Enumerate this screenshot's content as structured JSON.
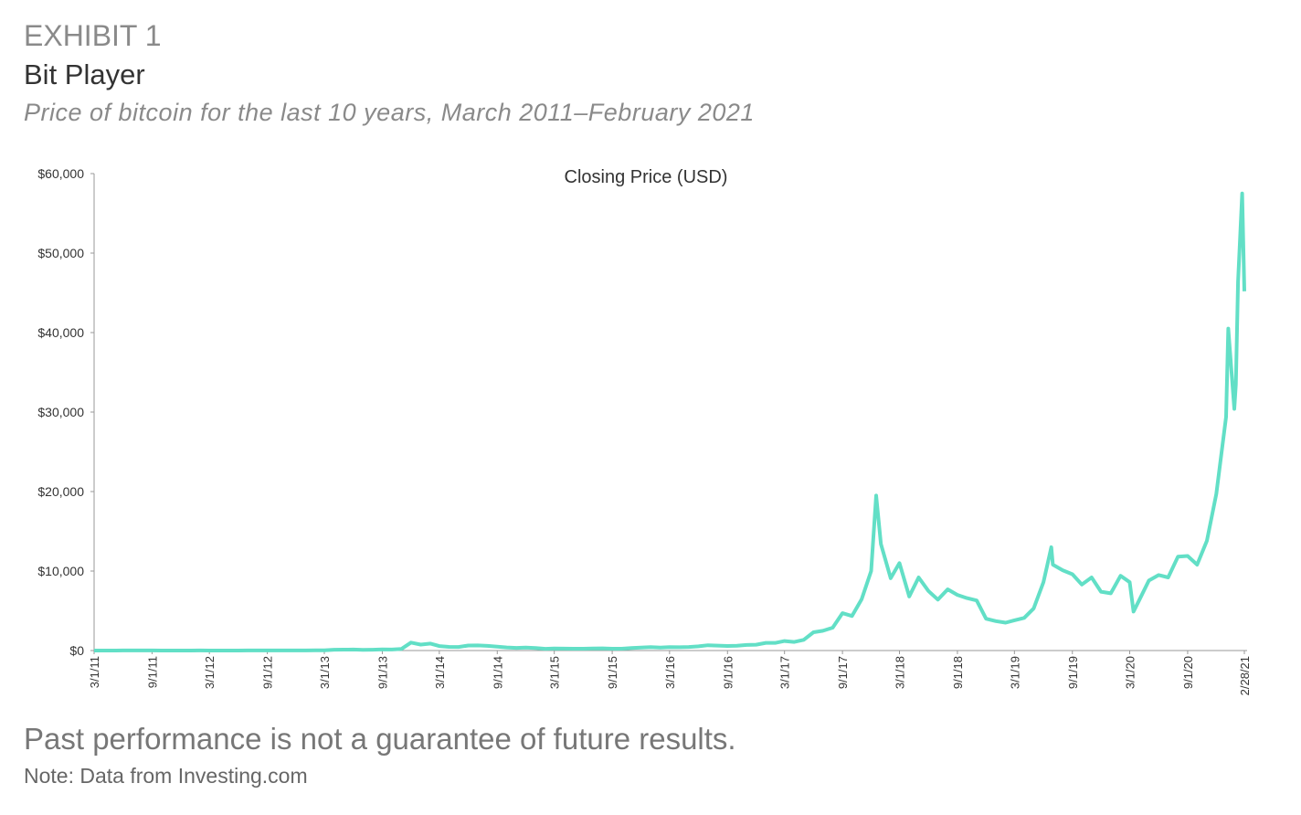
{
  "header": {
    "exhibit": "EXHIBIT 1",
    "title": "Bit Player",
    "subtitle": "Price of bitcoin for the last 10 years, March 2011–February 2021"
  },
  "chart_data": {
    "type": "line",
    "x": [
      "3/1/11",
      "4/1/11",
      "5/1/11",
      "6/1/11",
      "7/1/11",
      "8/1/11",
      "9/1/11",
      "10/1/11",
      "11/1/11",
      "12/1/11",
      "1/1/12",
      "2/1/12",
      "3/1/12",
      "4/1/12",
      "5/1/12",
      "6/1/12",
      "7/1/12",
      "8/1/12",
      "9/1/12",
      "10/1/12",
      "11/1/12",
      "12/1/12",
      "1/1/13",
      "2/1/13",
      "3/1/13",
      "4/1/13",
      "5/1/13",
      "6/1/13",
      "7/1/13",
      "8/1/13",
      "9/1/13",
      "10/1/13",
      "11/1/13",
      "12/1/13",
      "1/1/14",
      "2/1/14",
      "3/1/14",
      "4/1/14",
      "5/1/14",
      "6/1/14",
      "7/1/14",
      "8/1/14",
      "9/1/14",
      "10/1/14",
      "11/1/14",
      "12/1/14",
      "1/1/15",
      "2/1/15",
      "3/1/15",
      "4/1/15",
      "5/1/15",
      "6/1/15",
      "7/1/15",
      "8/1/15",
      "9/1/15",
      "10/1/15",
      "11/1/15",
      "12/1/15",
      "1/1/16",
      "2/1/16",
      "3/1/16",
      "4/1/16",
      "5/1/16",
      "6/1/16",
      "7/1/16",
      "8/1/16",
      "9/1/16",
      "10/1/16",
      "11/1/16",
      "12/1/16",
      "1/1/17",
      "2/1/17",
      "3/1/17",
      "4/1/17",
      "5/1/17",
      "6/1/17",
      "7/1/17",
      "8/1/17",
      "9/1/17",
      "10/1/17",
      "11/1/17",
      "12/1/17",
      "12/17/17",
      "1/1/18",
      "2/1/18",
      "3/1/18",
      "4/1/18",
      "5/1/18",
      "6/1/18",
      "7/1/18",
      "8/1/18",
      "9/1/18",
      "10/1/18",
      "11/1/18",
      "12/1/18",
      "1/1/19",
      "2/1/19",
      "3/1/19",
      "4/1/19",
      "5/1/19",
      "6/1/19",
      "6/26/19",
      "7/1/19",
      "8/1/19",
      "9/1/19",
      "10/1/19",
      "11/1/19",
      "12/1/19",
      "1/1/20",
      "2/1/20",
      "3/1/20",
      "3/13/20",
      "4/1/20",
      "5/1/20",
      "6/1/20",
      "7/1/20",
      "8/1/20",
      "9/1/20",
      "10/1/20",
      "11/1/20",
      "12/1/20",
      "1/1/21",
      "1/8/21",
      "1/27/21",
      "2/1/21",
      "2/8/21",
      "2/21/21",
      "2/28/21"
    ],
    "series": [
      {
        "name": "Closing Price (USD)",
        "color": "#62dfc6",
        "values": [
          1,
          1,
          3,
          9,
          15,
          13,
          8,
          5,
          3,
          3,
          5,
          6,
          5,
          5,
          5,
          5,
          7,
          9,
          10,
          12,
          11,
          12,
          13,
          20,
          34,
          104,
          116,
          128,
          90,
          106,
          141,
          127,
          205,
          1000,
          750,
          870,
          560,
          460,
          450,
          630,
          640,
          590,
          480,
          390,
          330,
          380,
          320,
          220,
          250,
          245,
          235,
          230,
          260,
          280,
          230,
          235,
          310,
          370,
          430,
          370,
          440,
          415,
          450,
          530,
          670,
          620,
          570,
          610,
          700,
          740,
          960,
          970,
          1190,
          1080,
          1350,
          2300,
          2480,
          2870,
          4700,
          4340,
          6450,
          10000,
          19500,
          13400,
          9100,
          11000,
          6800,
          9200,
          7500,
          6400,
          7700,
          7000,
          6600,
          6300,
          4000,
          3700,
          3500,
          3800,
          4100,
          5300,
          8600,
          13000,
          10800,
          10100,
          9600,
          8300,
          9200,
          7400,
          7200,
          9400,
          8600,
          4900,
          6400,
          8800,
          9500,
          9200,
          11800,
          11900,
          10800,
          13800,
          19700,
          29400,
          40500,
          30400,
          33500,
          46400,
          57500,
          45200
        ]
      }
    ],
    "xlim": [
      "3/1/11",
      "2/28/21"
    ],
    "xticks": [
      "3/1/11",
      "9/1/11",
      "3/1/12",
      "9/1/12",
      "3/1/13",
      "9/1/13",
      "3/1/14",
      "9/1/14",
      "3/1/15",
      "9/1/15",
      "3/1/16",
      "9/1/16",
      "3/1/17",
      "9/1/17",
      "3/1/18",
      "9/1/18",
      "3/1/19",
      "9/1/19",
      "3/1/20",
      "9/1/20",
      "2/28/21"
    ],
    "ylim": [
      0,
      60000
    ],
    "yticks": [
      {
        "value": 0,
        "label": "$0"
      },
      {
        "value": 10000,
        "label": "$10,000"
      },
      {
        "value": 20000,
        "label": "$20,000"
      },
      {
        "value": 30000,
        "label": "$30,000"
      },
      {
        "value": 40000,
        "label": "$40,000"
      },
      {
        "value": 50000,
        "label": "$50,000"
      },
      {
        "value": 60000,
        "label": "$60,000"
      }
    ]
  },
  "footer": {
    "disclaimer": "Past performance is not a guarantee of future results.",
    "note": "Note: Data from Investing.com"
  }
}
